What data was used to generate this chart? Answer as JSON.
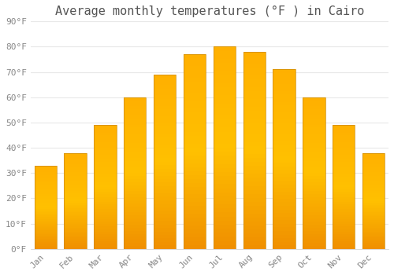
{
  "title": "Average monthly temperatures (°F ) in Cairo",
  "months": [
    "Jan",
    "Feb",
    "Mar",
    "Apr",
    "May",
    "Jun",
    "Jul",
    "Aug",
    "Sep",
    "Oct",
    "Nov",
    "Dec"
  ],
  "values": [
    33,
    38,
    49,
    60,
    69,
    77,
    80,
    78,
    71,
    60,
    49,
    38
  ],
  "bar_color_top": "#FFC84A",
  "bar_color_mid": "#FFB020",
  "bar_color_bottom": "#F09000",
  "bar_edge_color": "#CC8800",
  "background_color": "#FFFFFF",
  "plot_bg_color": "#FFFFFF",
  "grid_color": "#E8E8E8",
  "ylim": [
    0,
    90
  ],
  "yticks": [
    0,
    10,
    20,
    30,
    40,
    50,
    60,
    70,
    80,
    90
  ],
  "title_fontsize": 11,
  "tick_fontsize": 8,
  "tick_color": "#888888",
  "title_color": "#555555"
}
